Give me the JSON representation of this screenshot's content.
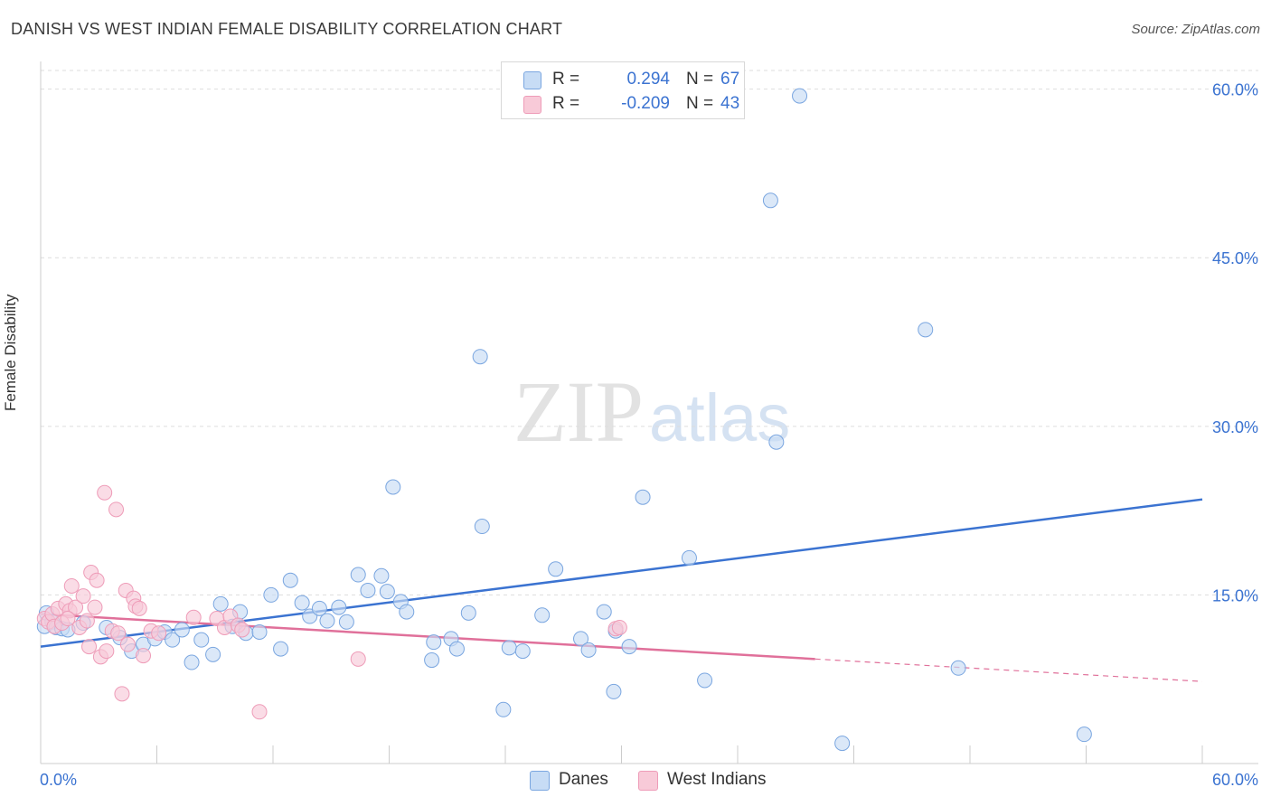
{
  "title": "DANISH VS WEST INDIAN FEMALE DISABILITY CORRELATION CHART",
  "source": "Source: ZipAtlas.com",
  "watermark": {
    "zip": "ZIP",
    "atlas": "atlas"
  },
  "colors": {
    "blue": "#3b73d1",
    "blue_fill": "#c7dcf5",
    "blue_stroke": "#7aa6e0",
    "pink": "#e0709a",
    "pink_fill": "#f8cad8",
    "pink_stroke": "#ee9cb8",
    "grid": "#dddddd"
  },
  "stats": [
    {
      "r_label": "R =",
      "r_value": "0.294",
      "n_label": "N =",
      "n_value": "67"
    },
    {
      "r_label": "R =",
      "r_value": "-0.209",
      "n_label": "N =",
      "n_value": "43"
    }
  ],
  "legend": [
    "Danes",
    "West Indians"
  ],
  "chart_data": {
    "type": "scatter",
    "title": "DANISH VS WEST INDIAN FEMALE DISABILITY CORRELATION CHART",
    "xlabel": "",
    "ylabel": "Female Disability",
    "xlim": [
      0,
      60
    ],
    "ylim": [
      0,
      61.5
    ],
    "x_tick_labels": [
      "0.0%",
      "60.0%"
    ],
    "y_tick_labels": [
      "15.0%",
      "30.0%",
      "45.0%",
      "60.0%"
    ],
    "y_ticks": [
      15,
      30,
      45,
      60
    ],
    "grid": true,
    "legend_position": "bottom",
    "series": [
      {
        "name": "Danes",
        "r": 0.294,
        "n": 67,
        "trend": {
          "x": [
            0,
            60
          ],
          "y": [
            10.4,
            23.5
          ]
        },
        "points": [
          [
            0.2,
            12.2
          ],
          [
            0.3,
            13.4
          ],
          [
            0.6,
            12.6
          ],
          [
            0.8,
            12.1
          ],
          [
            1.1,
            12.0
          ],
          [
            1.4,
            11.9
          ],
          [
            2.2,
            12.5
          ],
          [
            3.4,
            12.1
          ],
          [
            4.1,
            11.2
          ],
          [
            4.7,
            10.0
          ],
          [
            5.3,
            10.6
          ],
          [
            5.9,
            11.1
          ],
          [
            6.4,
            11.7
          ],
          [
            6.8,
            11.0
          ],
          [
            7.3,
            11.9
          ],
          [
            7.8,
            9.0
          ],
          [
            8.3,
            11.0
          ],
          [
            8.9,
            9.7
          ],
          [
            9.3,
            14.2
          ],
          [
            9.9,
            12.2
          ],
          [
            10.3,
            13.5
          ],
          [
            10.6,
            11.6
          ],
          [
            11.3,
            11.7
          ],
          [
            11.9,
            15.0
          ],
          [
            12.4,
            10.2
          ],
          [
            12.9,
            16.3
          ],
          [
            13.5,
            14.3
          ],
          [
            13.9,
            13.1
          ],
          [
            14.4,
            13.8
          ],
          [
            14.8,
            12.7
          ],
          [
            15.4,
            13.9
          ],
          [
            15.8,
            12.6
          ],
          [
            16.4,
            16.8
          ],
          [
            16.9,
            15.4
          ],
          [
            17.6,
            16.7
          ],
          [
            17.9,
            15.3
          ],
          [
            18.6,
            14.4
          ],
          [
            18.9,
            13.5
          ],
          [
            20.2,
            9.2
          ],
          [
            20.3,
            10.8
          ],
          [
            21.2,
            11.1
          ],
          [
            21.5,
            10.2
          ],
          [
            22.1,
            13.4
          ],
          [
            22.7,
            36.2
          ],
          [
            22.8,
            21.1
          ],
          [
            23.9,
            4.8
          ],
          [
            24.2,
            10.3
          ],
          [
            24.9,
            10.0
          ],
          [
            25.9,
            13.2
          ],
          [
            26.6,
            17.3
          ],
          [
            27.9,
            11.1
          ],
          [
            28.3,
            10.1
          ],
          [
            29.1,
            13.5
          ],
          [
            29.6,
            6.4
          ],
          [
            29.7,
            11.8
          ],
          [
            30.4,
            10.4
          ],
          [
            31.1,
            23.7
          ],
          [
            33.5,
            18.3
          ],
          [
            34.3,
            7.4
          ],
          [
            37.7,
            50.1
          ],
          [
            38.0,
            28.6
          ],
          [
            39.2,
            59.4
          ],
          [
            41.4,
            1.8
          ],
          [
            45.7,
            38.6
          ],
          [
            47.4,
            8.5
          ],
          [
            53.9,
            2.6
          ],
          [
            18.2,
            24.6
          ]
        ]
      },
      {
        "name": "West Indians",
        "r": -0.209,
        "n": 43,
        "trend": {
          "x": [
            0,
            40
          ],
          "y": [
            13.3,
            9.3
          ]
        },
        "trend_dashed": {
          "x": [
            40,
            60
          ],
          "y": [
            9.3,
            7.3
          ]
        },
        "points": [
          [
            0.2,
            12.9
          ],
          [
            0.4,
            12.6
          ],
          [
            0.6,
            13.3
          ],
          [
            0.7,
            12.2
          ],
          [
            0.9,
            13.8
          ],
          [
            1.1,
            12.5
          ],
          [
            1.3,
            14.2
          ],
          [
            1.5,
            13.6
          ],
          [
            1.6,
            15.8
          ],
          [
            1.8,
            13.9
          ],
          [
            2.0,
            12.1
          ],
          [
            2.2,
            14.9
          ],
          [
            2.4,
            12.7
          ],
          [
            2.5,
            10.4
          ],
          [
            2.6,
            17.0
          ],
          [
            2.8,
            13.9
          ],
          [
            2.9,
            16.3
          ],
          [
            3.1,
            9.5
          ],
          [
            3.3,
            24.1
          ],
          [
            3.4,
            10.0
          ],
          [
            3.7,
            11.8
          ],
          [
            3.9,
            22.6
          ],
          [
            4.0,
            11.6
          ],
          [
            4.2,
            6.2
          ],
          [
            4.4,
            15.4
          ],
          [
            4.5,
            10.6
          ],
          [
            4.8,
            14.7
          ],
          [
            4.9,
            14.0
          ],
          [
            5.1,
            13.8
          ],
          [
            5.3,
            9.6
          ],
          [
            5.7,
            11.8
          ],
          [
            6.1,
            11.6
          ],
          [
            7.9,
            13.0
          ],
          [
            9.1,
            12.9
          ],
          [
            9.5,
            12.1
          ],
          [
            9.8,
            13.1
          ],
          [
            10.2,
            12.3
          ],
          [
            10.4,
            11.9
          ],
          [
            11.3,
            4.6
          ],
          [
            16.4,
            9.3
          ],
          [
            29.7,
            12.0
          ],
          [
            29.9,
            12.1
          ],
          [
            1.4,
            12.9
          ]
        ]
      }
    ]
  }
}
